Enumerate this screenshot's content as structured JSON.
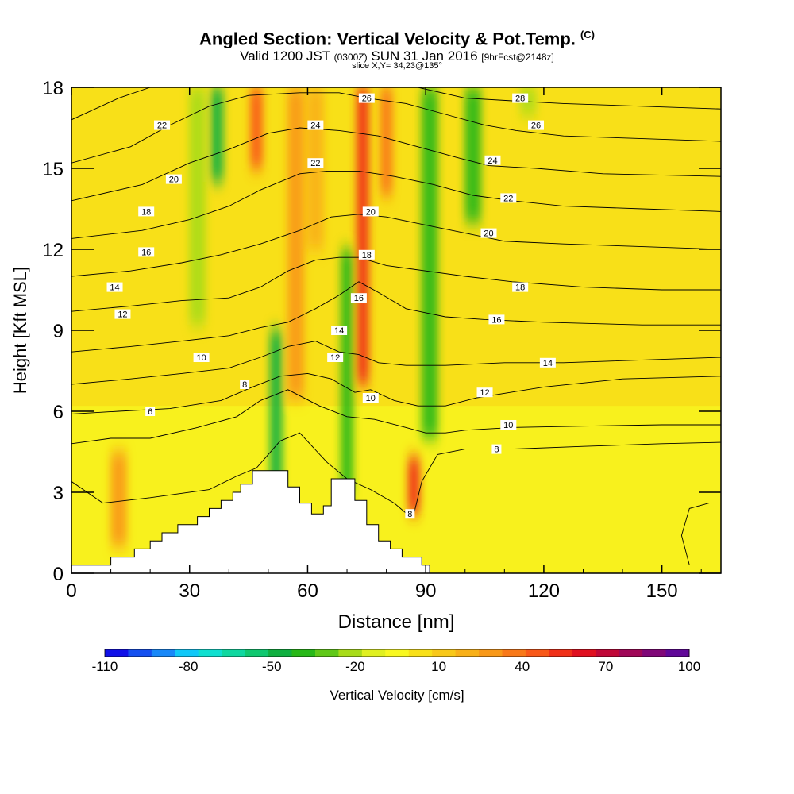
{
  "chart_data": {
    "type": "heatmap",
    "title": "Angled Section: Vertical Velocity & Pot.Temp.",
    "title_unit_tag": "(C)",
    "subtitle": {
      "valid_prefix": "Valid 1200 JST",
      "utc_time": "(0300Z)",
      "date": "SUN 31 Jan 2016",
      "forecast": "[9hrFcst@2148z]"
    },
    "slice_label": "slice X,Y= 34,23@135°",
    "xlabel": "Distance [nm]",
    "ylabel": "Height [Kft MSL]",
    "xlim": [
      0,
      165
    ],
    "ylim": [
      0,
      18
    ],
    "x_ticks": [
      "0",
      "30",
      "60",
      "90",
      "120",
      "150"
    ],
    "y_ticks": [
      "0",
      "3",
      "6",
      "9",
      "12",
      "15",
      "18"
    ],
    "colorbar": {
      "label": "Vertical Velocity [cm/s]",
      "tick_labels": [
        "-110",
        "-80",
        "-50",
        "-20",
        "10",
        "40",
        "70",
        "100"
      ],
      "colors": [
        "#1010e8",
        "#1450f0",
        "#1888f8",
        "#10c8f8",
        "#10e0d0",
        "#10d8a0",
        "#10c870",
        "#10b040",
        "#28b818",
        "#60c818",
        "#a8dc18",
        "#e0f020",
        "#f8f820",
        "#f8e018",
        "#f8c818",
        "#f8b018",
        "#f89818",
        "#f87818",
        "#f85818",
        "#f03018",
        "#e01020",
        "#c00838",
        "#a00858",
        "#800878",
        "#600898"
      ]
    },
    "vertical_velocity_features": [
      {
        "x": 32,
        "ymin": 9.2,
        "ymax": 18,
        "value": -25
      },
      {
        "x": 37,
        "ymin": 14.5,
        "ymax": 18,
        "value": -45
      },
      {
        "x": 47,
        "ymin": 15,
        "ymax": 18,
        "value": 45
      },
      {
        "x": 52,
        "ymin": 2.5,
        "ymax": 9,
        "value": -45
      },
      {
        "x": 57,
        "ymin": 6.5,
        "ymax": 18,
        "value": 30
      },
      {
        "x": 62,
        "ymin": 12,
        "ymax": 18,
        "value": 20
      },
      {
        "x": 70,
        "ymin": 2.8,
        "ymax": 12,
        "value": -40
      },
      {
        "x": 74,
        "ymin": 7,
        "ymax": 18,
        "value": 50
      },
      {
        "x": 80,
        "ymin": 14,
        "ymax": 18,
        "value": 40
      },
      {
        "x": 87,
        "ymin": 2.2,
        "ymax": 4.3,
        "value": 55
      },
      {
        "x": 91,
        "ymin": 5,
        "ymax": 18,
        "value": -35
      },
      {
        "x": 102,
        "ymin": 13,
        "ymax": 18,
        "value": -35
      },
      {
        "x": 116,
        "ymin": 17,
        "ymax": 18,
        "value": -20
      },
      {
        "x": 12,
        "ymin": 1,
        "ymax": 4.5,
        "value": 25
      }
    ],
    "theta_contours": [
      {
        "value": 8,
        "label": "8",
        "points": [
          [
            0,
            3.4
          ],
          [
            8,
            2.6
          ],
          [
            20,
            2.8
          ],
          [
            35,
            3.1
          ],
          [
            42,
            3.6
          ],
          [
            47,
            3.9
          ],
          [
            53,
            4.9
          ],
          [
            58,
            5.2
          ],
          [
            65,
            4.1
          ],
          [
            70,
            3.5
          ],
          [
            76,
            3.1
          ],
          [
            82,
            2.6
          ],
          [
            86,
            2.1
          ],
          [
            87,
            2.2
          ],
          [
            89,
            3.4
          ],
          [
            93,
            4.4
          ],
          [
            100,
            4.6
          ],
          [
            112,
            4.6
          ],
          [
            130,
            4.7
          ],
          [
            150,
            4.8
          ],
          [
            165,
            4.85
          ]
        ]
      },
      {
        "value": 10,
        "label": "10",
        "points": [
          [
            0,
            4.8
          ],
          [
            10,
            5.0
          ],
          [
            20,
            5.0
          ],
          [
            32,
            5.4
          ],
          [
            42,
            5.8
          ],
          [
            48,
            6.4
          ],
          [
            55,
            6.8
          ],
          [
            63,
            6.2
          ],
          [
            70,
            5.8
          ],
          [
            77,
            5.7
          ],
          [
            85,
            5.4
          ],
          [
            90,
            5.2
          ],
          [
            95,
            5.2
          ],
          [
            100,
            5.3
          ],
          [
            112,
            5.4
          ],
          [
            130,
            5.45
          ],
          [
            150,
            5.5
          ],
          [
            165,
            5.5
          ]
        ]
      },
      {
        "value": 12,
        "label": "12",
        "points": [
          [
            0,
            5.9
          ],
          [
            12,
            6.0
          ],
          [
            25,
            6.1
          ],
          [
            38,
            6.4
          ],
          [
            46,
            6.9
          ],
          [
            53,
            7.3
          ],
          [
            60,
            7.4
          ],
          [
            66,
            7.2
          ],
          [
            72,
            6.7
          ],
          [
            76,
            6.8
          ],
          [
            82,
            6.4
          ],
          [
            88,
            6.2
          ],
          [
            95,
            6.2
          ],
          [
            103,
            6.5
          ],
          [
            120,
            6.9
          ],
          [
            140,
            7.2
          ],
          [
            165,
            7.3
          ]
        ]
      },
      {
        "value": 14,
        "label": "14",
        "points": [
          [
            0,
            7.0
          ],
          [
            15,
            7.2
          ],
          [
            28,
            7.4
          ],
          [
            40,
            7.6
          ],
          [
            48,
            8.0
          ],
          [
            55,
            8.4
          ],
          [
            62,
            8.6
          ],
          [
            68,
            8.2
          ],
          [
            73,
            8.1
          ],
          [
            78,
            7.8
          ],
          [
            85,
            7.7
          ],
          [
            95,
            7.7
          ],
          [
            110,
            7.8
          ],
          [
            125,
            7.8
          ],
          [
            145,
            7.9
          ],
          [
            165,
            8.0
          ]
        ]
      },
      {
        "value": 16,
        "label": "16",
        "points": [
          [
            0,
            8.2
          ],
          [
            15,
            8.4
          ],
          [
            28,
            8.6
          ],
          [
            40,
            8.8
          ],
          [
            48,
            9.1
          ],
          [
            55,
            9.3
          ],
          [
            62,
            9.8
          ],
          [
            68,
            10.3
          ],
          [
            73,
            10.8
          ],
          [
            78,
            10.4
          ],
          [
            85,
            9.8
          ],
          [
            95,
            9.5
          ],
          [
            105,
            9.4
          ],
          [
            120,
            9.3
          ],
          [
            145,
            9.2
          ],
          [
            165,
            9.2
          ]
        ]
      },
      {
        "value": 18,
        "label": "18",
        "points": [
          [
            0,
            9.7
          ],
          [
            15,
            9.9
          ],
          [
            28,
            10.1
          ],
          [
            40,
            10.2
          ],
          [
            48,
            10.6
          ],
          [
            55,
            11.2
          ],
          [
            62,
            11.6
          ],
          [
            68,
            11.7
          ],
          [
            73,
            11.7
          ],
          [
            80,
            11.4
          ],
          [
            90,
            11.2
          ],
          [
            100,
            11.0
          ],
          [
            112,
            10.8
          ],
          [
            130,
            10.6
          ],
          [
            150,
            10.5
          ],
          [
            165,
            10.5
          ]
        ]
      },
      {
        "value": 20,
        "label": "20",
        "points": [
          [
            0,
            11.0
          ],
          [
            15,
            11.2
          ],
          [
            28,
            11.5
          ],
          [
            38,
            11.8
          ],
          [
            48,
            12.2
          ],
          [
            58,
            12.7
          ],
          [
            66,
            13.2
          ],
          [
            73,
            13.3
          ],
          [
            80,
            13.2
          ],
          [
            90,
            12.9
          ],
          [
            100,
            12.6
          ],
          [
            110,
            12.3
          ],
          [
            125,
            12.2
          ],
          [
            145,
            12.1
          ],
          [
            165,
            12.0
          ]
        ]
      },
      {
        "value": 22,
        "label": "22",
        "points": [
          [
            0,
            12.4
          ],
          [
            18,
            12.7
          ],
          [
            30,
            13.1
          ],
          [
            40,
            13.6
          ],
          [
            48,
            14.2
          ],
          [
            58,
            14.8
          ],
          [
            65,
            14.9
          ],
          [
            73,
            14.9
          ],
          [
            82,
            14.7
          ],
          [
            92,
            14.4
          ],
          [
            102,
            14.0
          ],
          [
            112,
            13.8
          ],
          [
            125,
            13.6
          ],
          [
            145,
            13.5
          ],
          [
            165,
            13.4
          ]
        ]
      },
      {
        "value": 24,
        "label": "24",
        "points": [
          [
            0,
            13.8
          ],
          [
            18,
            14.4
          ],
          [
            30,
            15.2
          ],
          [
            40,
            15.7
          ],
          [
            50,
            16.3
          ],
          [
            58,
            16.5
          ],
          [
            68,
            16.4
          ],
          [
            78,
            16.2
          ],
          [
            88,
            15.8
          ],
          [
            98,
            15.4
          ],
          [
            106,
            15.1
          ],
          [
            118,
            15.0
          ],
          [
            135,
            14.8
          ],
          [
            165,
            14.7
          ]
        ]
      },
      {
        "value": 26,
        "label": "26",
        "points": [
          [
            0,
            15.2
          ],
          [
            15,
            15.8
          ],
          [
            25,
            16.6
          ],
          [
            35,
            17.3
          ],
          [
            45,
            17.7
          ],
          [
            58,
            17.8
          ],
          [
            68,
            17.8
          ],
          [
            75,
            17.6
          ],
          [
            85,
            17.4
          ],
          [
            95,
            17.0
          ],
          [
            105,
            16.6
          ],
          [
            113,
            16.4
          ],
          [
            125,
            16.2
          ],
          [
            145,
            16.1
          ],
          [
            165,
            16.0
          ]
        ]
      },
      {
        "value": 28,
        "label": "28",
        "points": [
          [
            0,
            16.8
          ],
          [
            12,
            17.6
          ],
          [
            20,
            18.0
          ]
        ]
      },
      {
        "value": 28,
        "label": "28",
        "points": [
          [
            88,
            18.0
          ],
          [
            100,
            17.6
          ],
          [
            112,
            17.5
          ],
          [
            125,
            17.4
          ],
          [
            145,
            17.3
          ],
          [
            165,
            17.2
          ]
        ]
      },
      {
        "value": 8,
        "label": "",
        "points": [
          [
            157,
            0.3
          ],
          [
            155,
            1.4
          ],
          [
            157,
            2.4
          ],
          [
            162,
            2.6
          ],
          [
            165,
            2.6
          ]
        ]
      }
    ],
    "contour_labels": [
      {
        "text": "6",
        "x": 20,
        "y": 6.0
      },
      {
        "text": "8",
        "x": 44,
        "y": 7.0
      },
      {
        "text": "10",
        "x": 33,
        "y": 8.0
      },
      {
        "text": "12",
        "x": 13,
        "y": 9.6
      },
      {
        "text": "14",
        "x": 11,
        "y": 10.6
      },
      {
        "text": "16",
        "x": 19,
        "y": 11.9
      },
      {
        "text": "18",
        "x": 19,
        "y": 13.4
      },
      {
        "text": "20",
        "x": 26,
        "y": 14.6
      },
      {
        "text": "22",
        "x": 23,
        "y": 16.6
      },
      {
        "text": "22",
        "x": 62,
        "y": 15.2
      },
      {
        "text": "24",
        "x": 62,
        "y": 16.6
      },
      {
        "text": "26",
        "x": 75,
        "y": 17.6
      },
      {
        "text": "20",
        "x": 76,
        "y": 13.4
      },
      {
        "text": "18",
        "x": 75,
        "y": 11.8
      },
      {
        "text": "16",
        "x": 73,
        "y": 10.2
      },
      {
        "text": "14",
        "x": 68,
        "y": 9.0
      },
      {
        "text": "12",
        "x": 67,
        "y": 8.0
      },
      {
        "text": "10",
        "x": 76,
        "y": 6.5
      },
      {
        "text": "8",
        "x": 86,
        "y": 2.2
      },
      {
        "text": "28",
        "x": 114,
        "y": 17.6
      },
      {
        "text": "26",
        "x": 118,
        "y": 16.6
      },
      {
        "text": "24",
        "x": 107,
        "y": 15.3
      },
      {
        "text": "22",
        "x": 111,
        "y": 13.9
      },
      {
        "text": "20",
        "x": 106,
        "y": 12.6
      },
      {
        "text": "18",
        "x": 114,
        "y": 10.6
      },
      {
        "text": "16",
        "x": 108,
        "y": 9.4
      },
      {
        "text": "14",
        "x": 121,
        "y": 7.8
      },
      {
        "text": "12",
        "x": 105,
        "y": 6.7
      },
      {
        "text": "10",
        "x": 111,
        "y": 5.5
      },
      {
        "text": "8",
        "x": 108,
        "y": 4.6
      }
    ],
    "terrain": [
      [
        0,
        0.3
      ],
      [
        10,
        0.3
      ],
      [
        10,
        0.6
      ],
      [
        16,
        0.6
      ],
      [
        16,
        0.9
      ],
      [
        20,
        0.9
      ],
      [
        20,
        1.2
      ],
      [
        23,
        1.2
      ],
      [
        23,
        1.5
      ],
      [
        27,
        1.5
      ],
      [
        27,
        1.8
      ],
      [
        32,
        1.8
      ],
      [
        32,
        2.1
      ],
      [
        35,
        2.1
      ],
      [
        35,
        2.4
      ],
      [
        38,
        2.4
      ],
      [
        38,
        2.7
      ],
      [
        41,
        2.7
      ],
      [
        41,
        3.0
      ],
      [
        43,
        3.0
      ],
      [
        43,
        3.3
      ],
      [
        46,
        3.3
      ],
      [
        46,
        3.8
      ],
      [
        55,
        3.8
      ],
      [
        55,
        3.2
      ],
      [
        58,
        3.2
      ],
      [
        58,
        2.6
      ],
      [
        61,
        2.6
      ],
      [
        61,
        2.2
      ],
      [
        64,
        2.2
      ],
      [
        64,
        2.5
      ],
      [
        66,
        2.5
      ],
      [
        66,
        3.5
      ],
      [
        72,
        3.5
      ],
      [
        72,
        2.7
      ],
      [
        75,
        2.7
      ],
      [
        75,
        1.8
      ],
      [
        78,
        1.8
      ],
      [
        78,
        1.2
      ],
      [
        81,
        1.2
      ],
      [
        81,
        0.9
      ],
      [
        84,
        0.9
      ],
      [
        84,
        0.6
      ],
      [
        89,
        0.6
      ],
      [
        89,
        0.3
      ],
      [
        91,
        0.3
      ],
      [
        91,
        0
      ]
    ]
  }
}
